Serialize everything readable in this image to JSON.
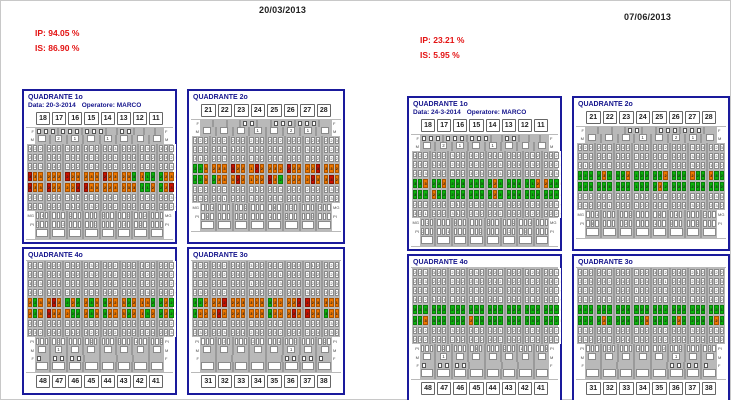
{
  "colors": {
    "red": "#cc1100",
    "orange": "#ee7700",
    "green": "#0cb50c",
    "navy": "#14148c",
    "accent_red": "#e31212"
  },
  "grid": {
    "top_rows": [
      {
        "label": "F",
        "type": "furc"
      },
      {
        "label": "M",
        "type": "mob"
      },
      {
        "label": "PI",
        "type": "num"
      },
      {
        "label": "PD",
        "type": "num"
      },
      {
        "label": "REC",
        "type": "num"
      },
      {
        "label": "PLA",
        "type": "plaque"
      },
      {
        "label": "SAN",
        "type": "bleeding"
      },
      {
        "label": "CAL",
        "type": "num"
      },
      {
        "label": "CAL",
        "type": "num"
      },
      {
        "label": "MG",
        "type": "sparse"
      },
      {
        "label": "PI",
        "type": "sparse"
      },
      {
        "label": "",
        "type": "wide"
      }
    ],
    "bottom_rows": [
      {
        "label": "PI",
        "type": "num"
      },
      {
        "label": "MG",
        "type": "num"
      },
      {
        "label": "CAL",
        "type": "num"
      },
      {
        "label": "CAL",
        "type": "num"
      },
      {
        "label": "SAN",
        "type": "bleeding"
      },
      {
        "label": "PLA",
        "type": "plaque"
      },
      {
        "label": "PD",
        "type": "num"
      },
      {
        "label": "REC",
        "type": "num"
      },
      {
        "label": "PI",
        "type": "sparse"
      },
      {
        "label": "M",
        "type": "mob"
      },
      {
        "label": "F",
        "type": "furc"
      },
      {
        "label": "",
        "type": "wide"
      }
    ]
  },
  "panels": [
    {
      "date": "20/03/2013",
      "ip": "IP: 94.05 %",
      "is": "IS: 86.90 %",
      "quadrants": [
        {
          "title": "QUADRANTE 1o",
          "subtitle_data": "Data: 20-3-2014",
          "subtitle_op": "Operatore: MARCO",
          "pos": "top",
          "teeth": [
            "18",
            "17",
            "16",
            "15",
            "14",
            "13",
            "12",
            "11"
          ],
          "furcation": [
            3,
            3,
            3,
            0,
            2,
            0,
            0,
            0
          ],
          "mobility": [
            "",
            "2",
            "1",
            "",
            "1",
            "",
            "",
            ""
          ],
          "plaque": "ROOOOOROOOOOROOOOGOGGGOO",
          "bleeding": "ROOROOOORROOOOOOOOGGOGOR",
          "digits": "323223233232232232132231",
          "digits_sparse": "..3..2....1....2.....3.."
        },
        {
          "title": "QUADRANTE 2o",
          "pos": "top",
          "teeth": [
            "21",
            "22",
            "23",
            "24",
            "25",
            "26",
            "27",
            "28"
          ],
          "furcation": [
            0,
            0,
            0,
            2,
            0,
            3,
            3,
            0
          ],
          "mobility": [
            "",
            "",
            "",
            "1",
            "",
            "2",
            "1",
            ""
          ],
          "plaque": "GGOOOOROOOROOOOROOOOROOO",
          "bleeding": "GGOGOOOROOOOROGOOOOROORO",
          "digits": "232232322332223223223122",
          "digits_sparse": ".2....3....1.....2....1."
        },
        {
          "title": "QUADRANTE 4o",
          "pos": "bottom",
          "teeth": [
            "48",
            "47",
            "46",
            "45",
            "44",
            "43",
            "42",
            "41"
          ],
          "furcation": [
            1,
            2,
            2,
            0,
            0,
            0,
            0,
            0
          ],
          "mobility": [
            "",
            "1",
            "",
            "",
            "",
            "",
            "",
            ""
          ],
          "plaque": "OGOROOOGGOGOGOOOGOOGOGOG",
          "bleeding": "OGOOROGOGOGOGOOOGOOOGGOG",
          "digits": "223322232232322322123223",
          "digits_sparse": "..1....2....3.....2....1"
        },
        {
          "title": "QUADRANTE 3o",
          "pos": "bottom",
          "teeth": [
            "31",
            "32",
            "33",
            "34",
            "35",
            "36",
            "37",
            "38"
          ],
          "furcation": [
            0,
            0,
            0,
            0,
            0,
            2,
            2,
            1
          ],
          "mobility": [
            "",
            "",
            "",
            "",
            "",
            "1",
            "",
            ""
          ],
          "plaque": "GOOOROOOOOOOGOOOROROOGOO",
          "bleeding": "GGOOOROOOOOOGOOOORROOOOO",
          "digits": "322232232322322232212322",
          "digits_sparse": ".1....2.....3....2....1."
        }
      ]
    },
    {
      "date": "07/06/2013",
      "ip": "IP: 23.21 %",
      "is": "IS: 5.95 %",
      "quadrants": [
        {
          "title": "QUADRANTE 1o",
          "subtitle_data": "Data: 24-3-2014",
          "subtitle_op": "Operatore: MARCO",
          "pos": "top",
          "teeth": [
            "18",
            "17",
            "16",
            "15",
            "14",
            "13",
            "12",
            "11"
          ],
          "furcation": [
            3,
            3,
            3,
            0,
            2,
            0,
            0,
            0
          ],
          "mobility": [
            "",
            "2",
            "1",
            "",
            "1",
            "",
            "",
            ""
          ],
          "plaque": "GGOGGOGGGGGGGOGGGGGGOOGG",
          "bleeding": "GGGOGGGGGGGGGOGGGGGGGGGG",
          "digits": "323223233232232232132231",
          "digits_sparse": "..2..1....2....1.....2.."
        },
        {
          "title": "QUADRANTE 2o",
          "pos": "top",
          "teeth": [
            "21",
            "22",
            "23",
            "24",
            "25",
            "26",
            "27",
            "28"
          ],
          "furcation": [
            0,
            0,
            0,
            2,
            0,
            3,
            3,
            0
          ],
          "mobility": [
            "",
            "",
            "",
            "1",
            "",
            "2",
            "1",
            ""
          ],
          "plaque": "GGGGOGGGOGGGGGOGGGOGGOGG",
          "bleeding": "GGGGGGGGGGGGGOGGGGGGGGGG",
          "digits": "232232322332223223223122",
          "digits_sparse": ".1....2....1.....2....1."
        },
        {
          "title": "QUADRANTE 4o",
          "pos": "bottom",
          "teeth": [
            "48",
            "47",
            "46",
            "45",
            "44",
            "43",
            "42",
            "41"
          ],
          "furcation": [
            1,
            2,
            2,
            0,
            0,
            0,
            0,
            0
          ],
          "mobility": [
            "",
            "1",
            "",
            "",
            "",
            "",
            "",
            ""
          ],
          "plaque": "GGOGGGGGGOGGGGGGGGGGGGGG",
          "bleeding": "GGGGGGGGGGGGGGGGGGGGGGGG",
          "digits": "223322232232322322123223",
          "digits_sparse": "..1....1....2.....1....2"
        },
        {
          "title": "QUADRANTE 3o",
          "pos": "bottom",
          "teeth": [
            "31",
            "32",
            "33",
            "34",
            "35",
            "36",
            "37",
            "38"
          ],
          "furcation": [
            0,
            0,
            0,
            0,
            0,
            2,
            2,
            1
          ],
          "mobility": [
            "",
            "",
            "",
            "",
            "",
            "1",
            "",
            ""
          ],
          "plaque": "GGGGOGGGGGGOGGGGOGGGGGOG",
          "bleeding": "GGGGGGGGGGGGGGGGGGGGGGGG",
          "digits": "322232232322322232212322",
          "digits_sparse": ".2....1.....2....1....2."
        }
      ]
    }
  ]
}
